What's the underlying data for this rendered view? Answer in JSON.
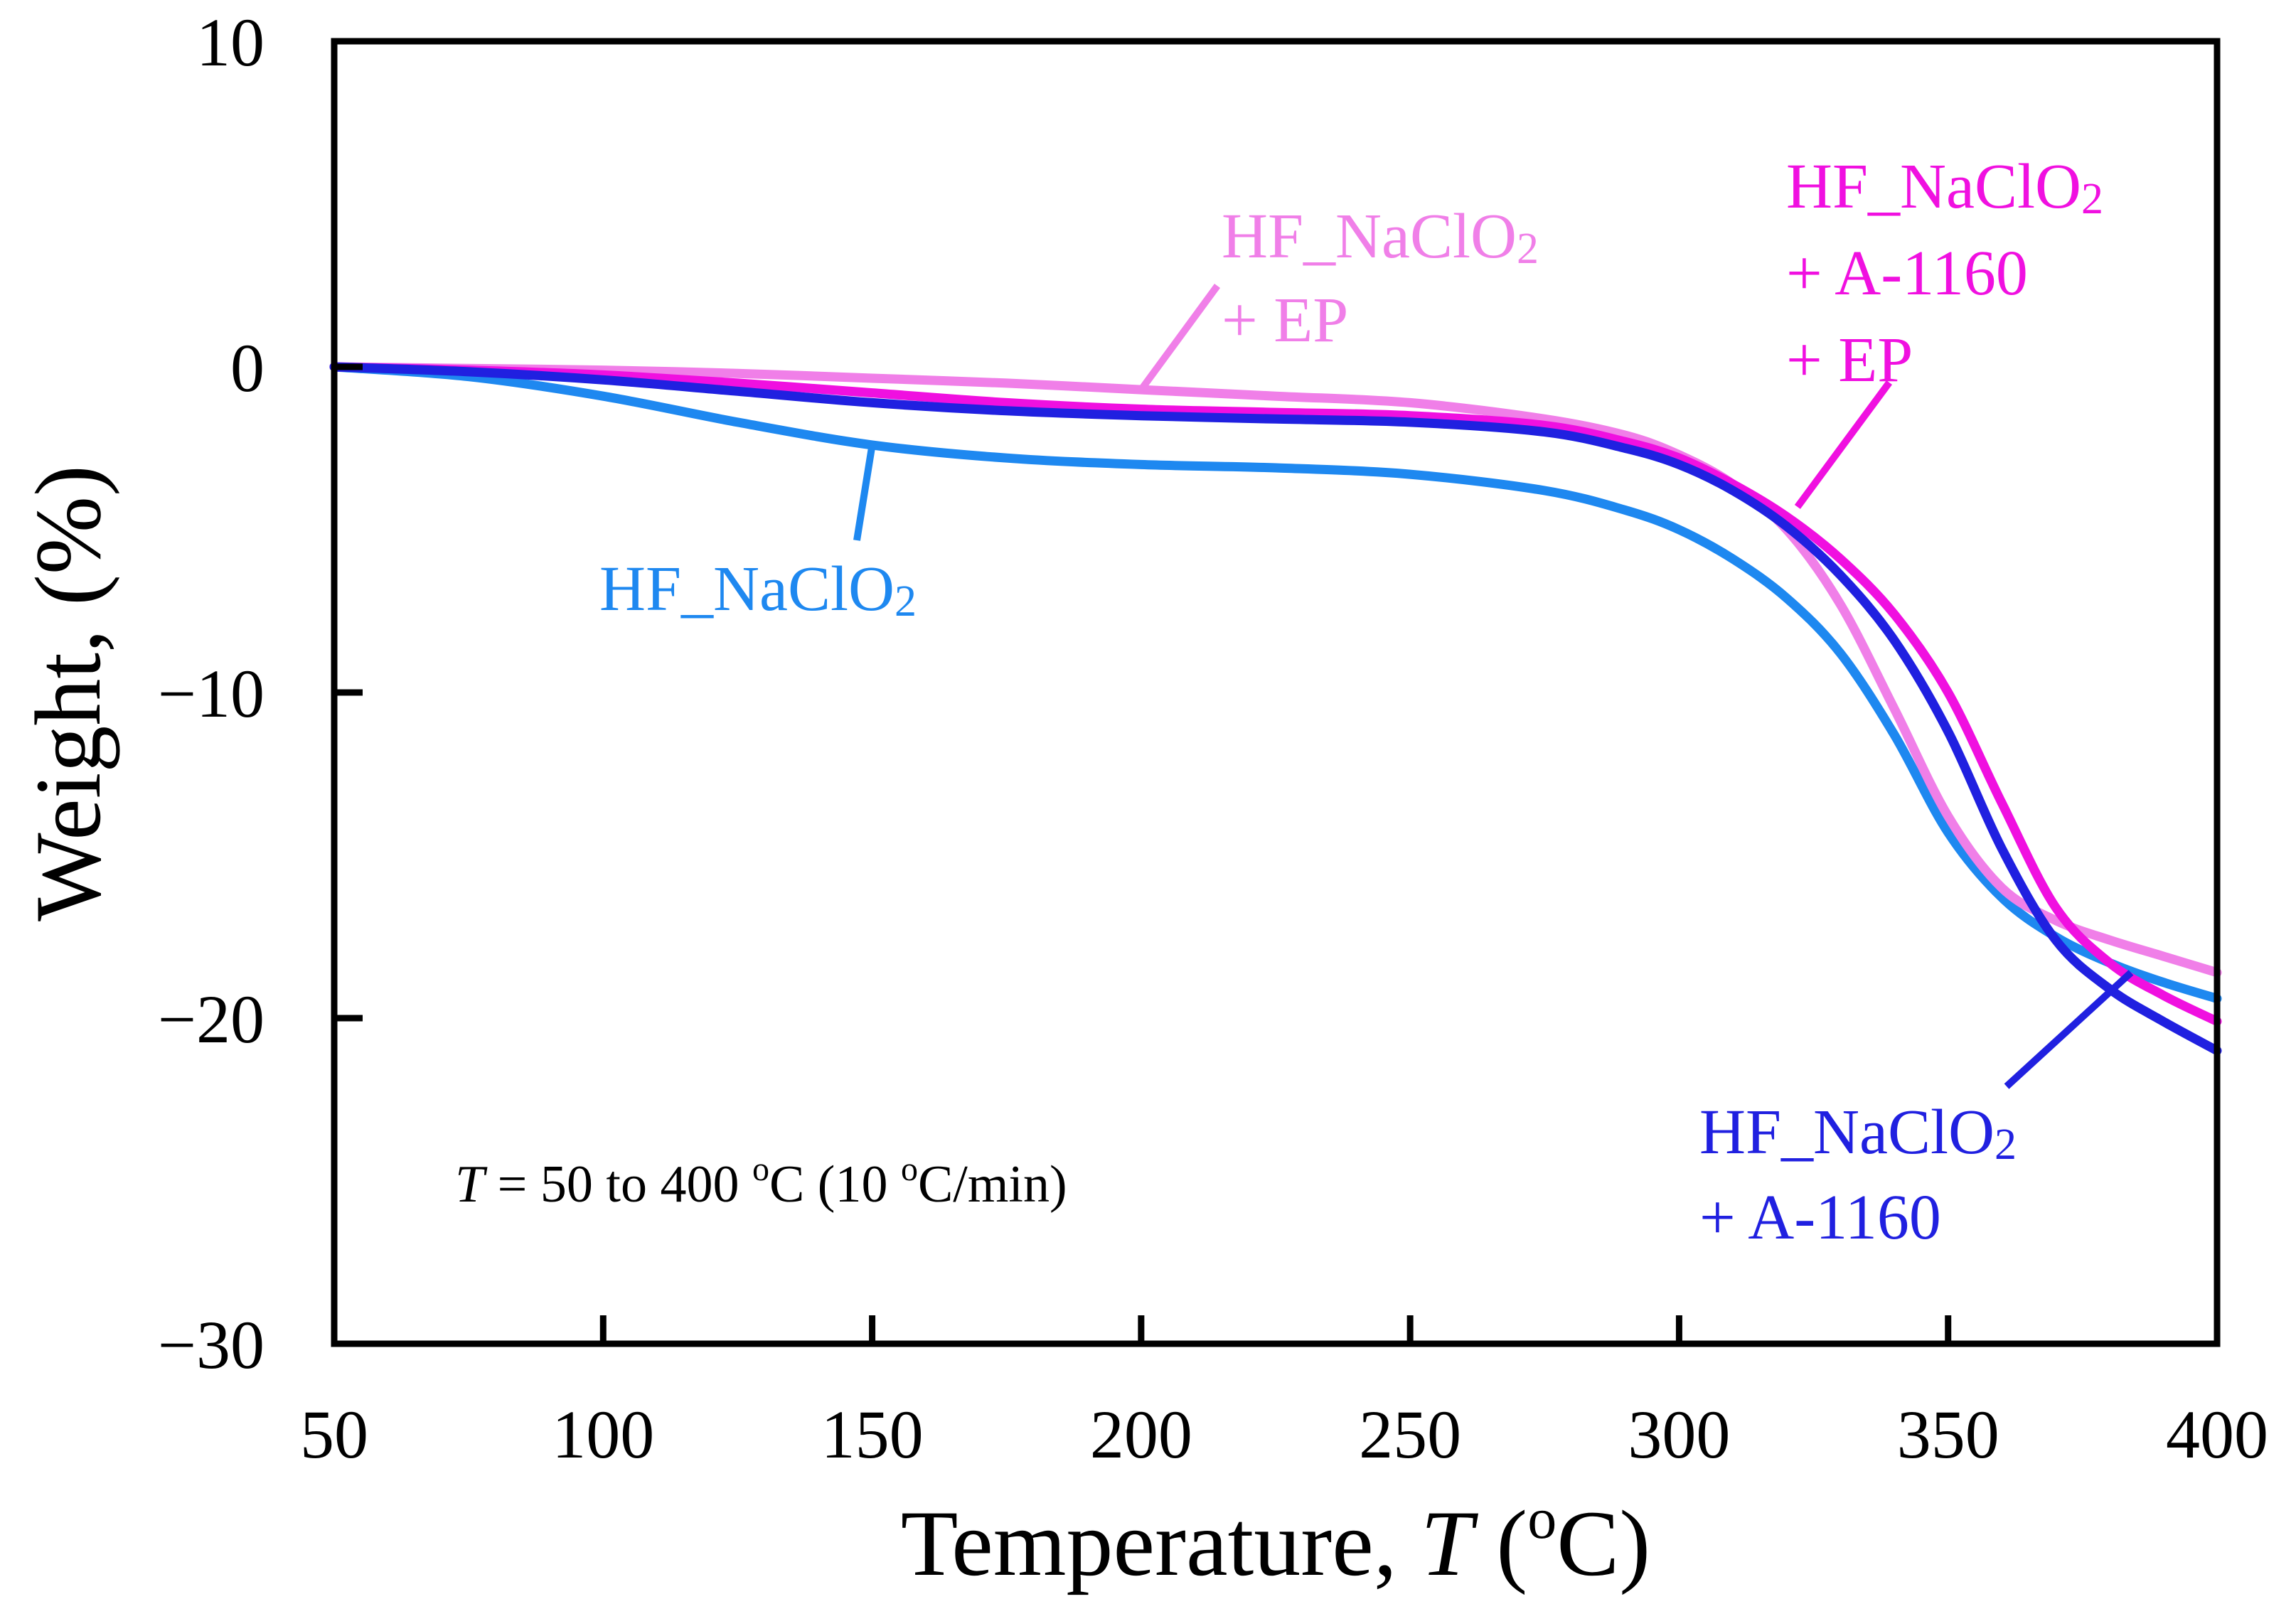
{
  "chart_data": {
    "type": "line",
    "title": "",
    "xlabel": "Temperature, ",
    "xlabel_var": "T",
    "xlabel_unit_open": " (",
    "xlabel_unit_sup": "o",
    "xlabel_unit_close": "C)",
    "ylabel": "Weight, (%)",
    "xlim": [
      50,
      400
    ],
    "ylim": [
      -30,
      10
    ],
    "xticks": [
      50,
      100,
      150,
      200,
      250,
      300,
      350,
      400
    ],
    "yticks": [
      10,
      0,
      -10,
      -20,
      -30
    ],
    "ytick_labels": [
      "10",
      "0",
      "−10",
      "−20",
      "−30"
    ],
    "grid": false,
    "annotation": {
      "var": "T",
      "text1": " = 50 to 400 ",
      "sup1": "o",
      "text2": "C (10 ",
      "sup2": "o",
      "text3": "C/min)"
    },
    "series": [
      {
        "name": "HF_NaClO2",
        "label_lines": [
          "HF_NaClO",
          "2"
        ],
        "color": "#1E88F0",
        "x": [
          50,
          75,
          100,
          125,
          150,
          175,
          200,
          225,
          250,
          275,
          290,
          300,
          310,
          320,
          330,
          340,
          350,
          360,
          370,
          380,
          390,
          400
        ],
        "y": [
          0,
          -0.3,
          -0.9,
          -1.7,
          -2.4,
          -2.8,
          -3.0,
          -3.1,
          -3.3,
          -3.8,
          -4.4,
          -5.0,
          -5.9,
          -7.1,
          -8.8,
          -11.3,
          -14.3,
          -16.3,
          -17.5,
          -18.3,
          -18.9,
          -19.4
        ]
      },
      {
        "name": "HF_NaClO2 + EP",
        "label_lines": [
          "HF_NaClO",
          "2",
          "+ EP"
        ],
        "color": "#F07FE8",
        "x": [
          50,
          75,
          100,
          125,
          150,
          175,
          200,
          225,
          250,
          275,
          290,
          300,
          310,
          320,
          330,
          340,
          350,
          360,
          370,
          380,
          390,
          400
        ],
        "y": [
          0,
          -0.05,
          -0.1,
          -0.2,
          -0.35,
          -0.5,
          -0.7,
          -0.9,
          -1.1,
          -1.6,
          -2.1,
          -2.7,
          -3.6,
          -5.0,
          -7.3,
          -10.5,
          -13.8,
          -16.0,
          -17.0,
          -17.6,
          -18.1,
          -18.6
        ]
      },
      {
        "name": "HF_NaClO2 + A-1160 + EP",
        "label_lines": [
          "HF_NaClO",
          "2",
          "+ A-1160",
          "+ EP"
        ],
        "color": "#F010E0",
        "x": [
          50,
          75,
          100,
          125,
          150,
          175,
          200,
          225,
          250,
          275,
          290,
          300,
          310,
          320,
          330,
          340,
          350,
          360,
          370,
          380,
          390,
          400
        ],
        "y": [
          0,
          -0.1,
          -0.25,
          -0.5,
          -0.8,
          -1.1,
          -1.3,
          -1.4,
          -1.5,
          -1.8,
          -2.3,
          -2.8,
          -3.6,
          -4.6,
          -5.9,
          -7.6,
          -10.0,
          -13.4,
          -16.6,
          -18.3,
          -19.3,
          -20.1
        ]
      },
      {
        "name": "HF_NaClO2 + A-1160",
        "label_lines": [
          "HF_NaClO",
          "2",
          "+ A-1160"
        ],
        "color": "#2020E0",
        "x": [
          50,
          75,
          100,
          125,
          150,
          175,
          200,
          225,
          250,
          275,
          290,
          300,
          310,
          320,
          330,
          340,
          350,
          360,
          370,
          380,
          390,
          400
        ],
        "y": [
          0,
          -0.15,
          -0.4,
          -0.75,
          -1.1,
          -1.35,
          -1.5,
          -1.6,
          -1.7,
          -2.0,
          -2.5,
          -3.0,
          -3.8,
          -4.9,
          -6.4,
          -8.4,
          -11.2,
          -14.8,
          -17.6,
          -19.1,
          -20.1,
          -21.0
        ]
      }
    ]
  }
}
